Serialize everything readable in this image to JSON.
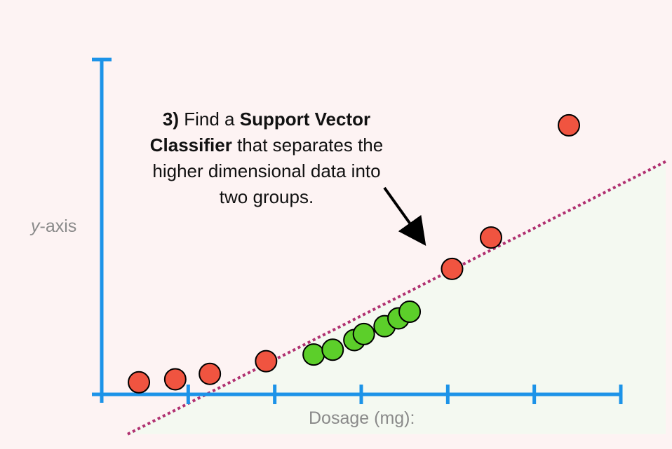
{
  "chart_data": {
    "type": "scatter",
    "title": "",
    "xlabel": "Dosage (mg):",
    "ylabel": "-axis",
    "ylabel_italic_prefix": "y",
    "xlim": [
      0,
      6
    ],
    "ylim": [
      0,
      5.55
    ],
    "x_ticks": [
      1,
      2,
      3,
      4,
      5,
      6
    ],
    "grid": false,
    "legend": "none",
    "series": [
      {
        "color": "#f05440",
        "points": [
          {
            "x": 0.43,
            "y": 0.2
          },
          {
            "x": 0.85,
            "y": 0.25
          },
          {
            "x": 1.25,
            "y": 0.34
          },
          {
            "x": 1.9,
            "y": 0.55
          },
          {
            "x": 4.05,
            "y": 2.08
          },
          {
            "x": 4.5,
            "y": 2.6
          },
          {
            "x": 5.4,
            "y": 4.46
          }
        ]
      },
      {
        "color": "#5ccf2a",
        "points": [
          {
            "x": 2.45,
            "y": 0.66
          },
          {
            "x": 2.67,
            "y": 0.74
          },
          {
            "x": 2.92,
            "y": 0.9
          },
          {
            "x": 3.03,
            "y": 1.0
          },
          {
            "x": 3.27,
            "y": 1.13
          },
          {
            "x": 3.43,
            "y": 1.26
          },
          {
            "x": 3.56,
            "y": 1.37
          }
        ]
      }
    ],
    "classifier_line": {
      "style": "dotted",
      "color": "#b03070",
      "points": [
        {
          "x": 0.3,
          "y": -0.66
        },
        {
          "x": 6.52,
          "y": 3.86
        }
      ]
    },
    "regions": {
      "above_color": "#fdf3f3",
      "below_color": "#f4f9f1"
    },
    "axis_color": "#1c93e8",
    "annotation": {
      "label_prefix": "3)",
      "text_1": " Find a ",
      "bold_1": "Support Vector",
      "bold_2": "Classifier",
      "text_2": " that separates the",
      "line_3": "higher dimensional data into",
      "line_4": "two groups.",
      "arrow_color": "#000000"
    }
  }
}
